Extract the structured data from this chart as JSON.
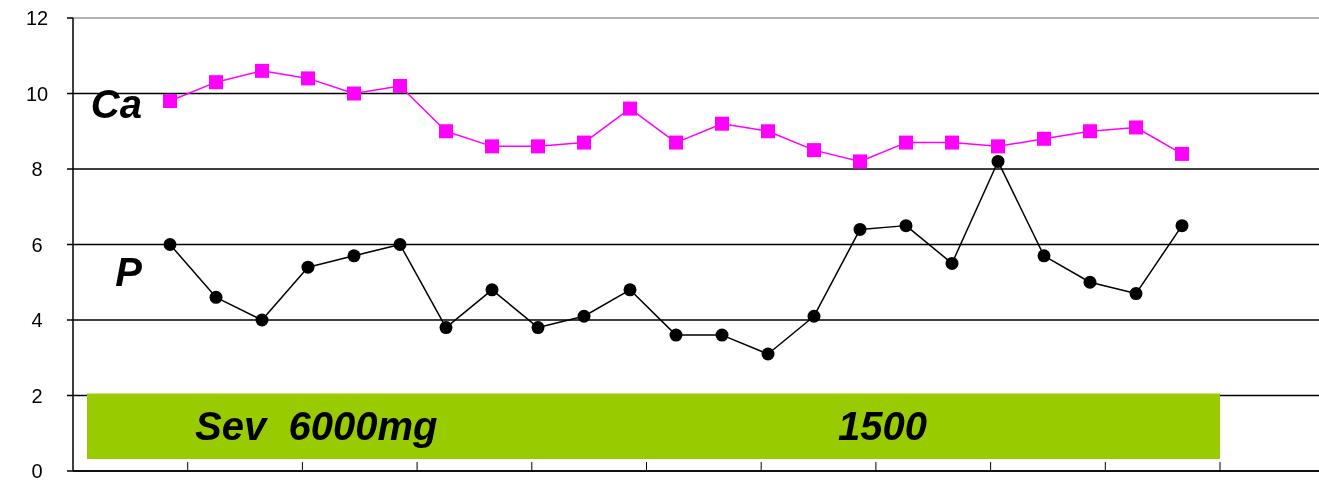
{
  "chart_data": {
    "type": "line",
    "categories": [
      null,
      null,
      null,
      null,
      null,
      null,
      null,
      null,
      null,
      null,
      null,
      null,
      null,
      null,
      null,
      null,
      null,
      null,
      null,
      null,
      null,
      null,
      null
    ],
    "ylim": [
      0,
      12
    ],
    "yticks": [
      0,
      2,
      4,
      6,
      8,
      10,
      12
    ],
    "grid": "y",
    "tick_labels": "y",
    "series": [
      {
        "name": "Ca",
        "color": "#ff00ff",
        "marker": "square",
        "values": [
          9.8,
          10.3,
          10.6,
          10.4,
          10.0,
          10.2,
          9.0,
          8.6,
          8.6,
          8.7,
          9.6,
          8.7,
          9.2,
          9.0,
          8.5,
          8.2,
          8.7,
          8.7,
          8.6,
          8.8,
          9.0,
          9.1,
          8.4
        ]
      },
      {
        "name": "P",
        "color": "#000000",
        "marker": "circle",
        "values": [
          6.0,
          4.6,
          4.0,
          5.4,
          5.7,
          6.0,
          3.8,
          4.8,
          3.8,
          4.1,
          4.8,
          3.6,
          3.6,
          3.1,
          4.1,
          6.4,
          6.5,
          5.5,
          8.2,
          5.7,
          5.0,
          4.7,
          6.5
        ]
      }
    ],
    "annotations": [
      "Sev  6000mg",
      "1500"
    ]
  }
}
